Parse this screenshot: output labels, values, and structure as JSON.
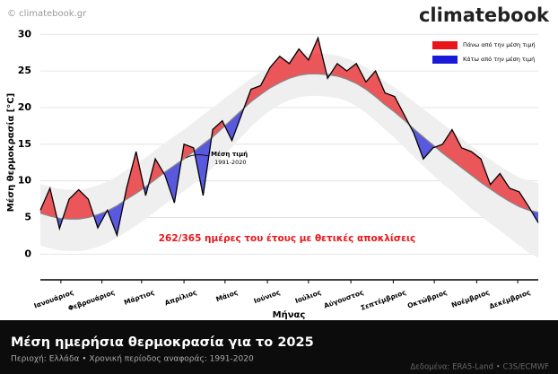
{
  "chart_data": {
    "type": "line",
    "title": "Μέση ημερήσια θερμοκρασία για το 2025",
    "subtitle": "Περιοχή: Ελλάδα • Χρονική περίοδος αναφοράς: 1991-2020",
    "source": "Δεδομένα: ERA5-Land • C3S/ECMWF",
    "credit": "© climatebook.gr",
    "logo": "climatebook",
    "y_label": "Μέση θερμοκρασία [°C]",
    "x_label": "Μήνας",
    "annotation": "262/365 ημέρες του έτους με θετικές αποκλίσεις",
    "mean_period": "1991-2020",
    "x": [
      1,
      8,
      15,
      22,
      29,
      36,
      43,
      50,
      57,
      64,
      71,
      78,
      85,
      92,
      99,
      106,
      113,
      120,
      127,
      134,
      141,
      148,
      155,
      162,
      169,
      176,
      183,
      190,
      197,
      204,
      211,
      218,
      225,
      232,
      239,
      246,
      253,
      260,
      267,
      274,
      281,
      288,
      295,
      302,
      309,
      316,
      323,
      330,
      337,
      344,
      351,
      358,
      365
    ],
    "series": [
      {
        "color": "#000000",
        "values": [
          6.0,
          9.0,
          3.5,
          7.5,
          8.8,
          7.5,
          3.6,
          6.0,
          2.6,
          9.0,
          14.0,
          8.0,
          13.0,
          10.8,
          7.0,
          15.0,
          14.5,
          8.0,
          17.0,
          18.2,
          15.5,
          19.0,
          22.5,
          23.0,
          25.5,
          27.0,
          26.0,
          28.0,
          26.5,
          29.5,
          24.0,
          26.0,
          25.0,
          26.0,
          23.5,
          25.0,
          22.0,
          21.5,
          19.0,
          16.5,
          13.0,
          14.5,
          15.0,
          17.0,
          14.5,
          14.0,
          13.0,
          9.5,
          11.0,
          9.0,
          8.5,
          6.5,
          4.3
        ]
      },
      {
        "name": "Μέση τιμή",
        "color": "#888888",
        "values": [
          5.6,
          5.2,
          4.9,
          4.8,
          4.8,
          5.0,
          5.4,
          5.9,
          6.6,
          7.5,
          8.3,
          9.2,
          10.2,
          11.2,
          12.1,
          13.0,
          14.0,
          15.0,
          16.0,
          17.2,
          18.4,
          19.6,
          20.8,
          21.8,
          22.7,
          23.4,
          24.0,
          24.4,
          24.6,
          24.6,
          24.5,
          24.3,
          23.9,
          23.3,
          22.5,
          21.5,
          20.4,
          19.4,
          18.3,
          17.1,
          16.0,
          14.9,
          13.8,
          12.8,
          11.8,
          10.8,
          9.8,
          8.9,
          8.0,
          7.2,
          6.5,
          6.0,
          5.7
        ]
      }
    ],
    "band_upper": [
      9.6,
      9.2,
      8.9,
      8.8,
      8.8,
      9.0,
      9.4,
      9.9,
      10.6,
      11.5,
      12.3,
      13.2,
      14.2,
      15.2,
      16.1,
      17.0,
      18.0,
      19.0,
      20.0,
      21.0,
      22.0,
      23.0,
      24.0,
      24.8,
      25.6,
      26.3,
      26.8,
      27.2,
      27.4,
      27.4,
      27.3,
      27.1,
      26.7,
      26.2,
      25.5,
      24.6,
      23.6,
      22.7,
      21.8,
      20.8,
      19.8,
      18.8,
      17.8,
      16.8,
      15.8,
      14.8,
      13.8,
      12.9,
      12.0,
      11.2,
      10.5,
      10.0,
      9.7
    ],
    "band_lower": [
      1.2,
      0.8,
      0.5,
      0.4,
      0.4,
      0.6,
      1.0,
      1.5,
      2.2,
      3.1,
      3.9,
      4.8,
      5.8,
      6.8,
      7.7,
      8.6,
      9.6,
      10.6,
      11.8,
      13.2,
      14.6,
      16.0,
      17.4,
      18.6,
      19.6,
      20.4,
      21.0,
      21.4,
      21.6,
      21.6,
      21.5,
      21.3,
      20.9,
      20.2,
      19.3,
      18.2,
      17.0,
      15.9,
      14.6,
      13.3,
      12.0,
      10.8,
      9.6,
      8.6,
      7.4,
      6.2,
      5.2,
      4.2,
      3.2,
      2.2,
      1.2,
      0.2,
      -0.5
    ],
    "band_color": "#efefef",
    "above_color": "#e8161b",
    "below_color": "#1a1ad8",
    "legend": [
      {
        "label": "Πάνω από την μέση τιμή",
        "color": "#e8161b"
      },
      {
        "label": "Κάτω από την μέση τιμή",
        "color": "#1a1ad8"
      }
    ],
    "xlim": [
      1,
      365
    ],
    "xticks": [
      {
        "value": 16,
        "label": "Ιανουάριος"
      },
      {
        "value": 46,
        "label": "Φεβρουάριος"
      },
      {
        "value": 75,
        "label": "Μάρτιος"
      },
      {
        "value": 106,
        "label": "Απρίλιος"
      },
      {
        "value": 136,
        "label": "Μάιος"
      },
      {
        "value": 167,
        "label": "Ιούνιος"
      },
      {
        "value": 197,
        "label": "Ιούλιος"
      },
      {
        "value": 228,
        "label": "Αύγουστος"
      },
      {
        "value": 259,
        "label": "Σεπτέμβριος"
      },
      {
        "value": 289,
        "label": "Οκτώβριος"
      },
      {
        "value": 320,
        "label": "Νοέμβριος"
      },
      {
        "value": 350,
        "label": "Δεκέμβριος"
      }
    ],
    "ylim": [
      -3.5,
      31.5
    ],
    "yticks": [
      0,
      5,
      10,
      15,
      20,
      25,
      30
    ],
    "grid": true
  }
}
